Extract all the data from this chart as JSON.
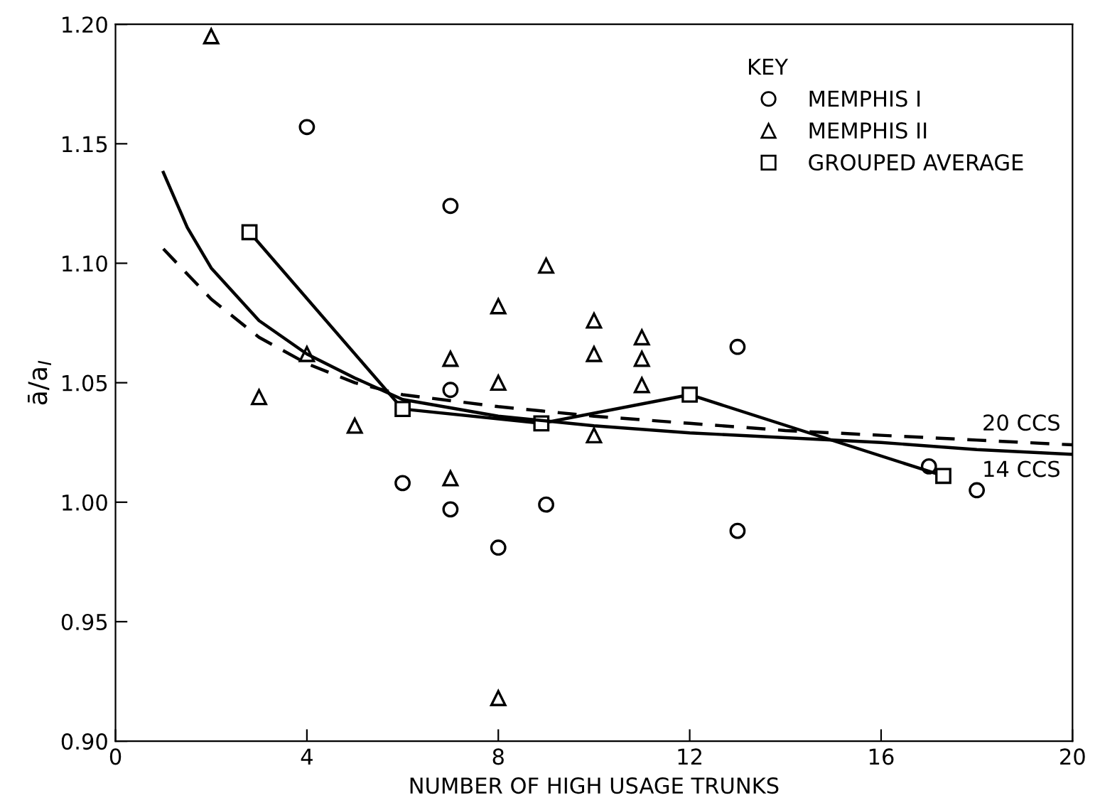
{
  "chart_data": {
    "type": "scatter",
    "xlabel": "NUMBER OF HIGH USAGE TRUNKS",
    "ylabel": "ā/a$_{I}$",
    "xlim": [
      0,
      20
    ],
    "ylim": [
      0.9,
      1.2
    ],
    "xticks": [
      0,
      4,
      8,
      12,
      16,
      20
    ],
    "yticks": [
      {
        "value": 0.9,
        "label": "0.90"
      },
      {
        "value": 0.95,
        "label": "0.95"
      },
      {
        "value": 1.0,
        "label": "1.00"
      },
      {
        "value": 1.05,
        "label": "1.05"
      },
      {
        "value": 1.1,
        "label": "1.10"
      },
      {
        "value": 1.15,
        "label": "1.15"
      },
      {
        "value": 1.2,
        "label": "1.20"
      }
    ],
    "grid": false,
    "legend": "top right",
    "legend_title": "KEY",
    "series": [
      {
        "name": "MEMPHIS I",
        "marker": "circle",
        "color": "#000000",
        "x": [
          4,
          7,
          7,
          6,
          7,
          8,
          9,
          13,
          13,
          17,
          18
        ],
        "values": [
          1.157,
          1.124,
          1.047,
          1.008,
          0.997,
          0.981,
          0.999,
          1.065,
          0.988,
          1.015,
          1.005
        ]
      },
      {
        "name": "MEMPHIS II",
        "marker": "triangle",
        "color": "#000000",
        "x": [
          2,
          3,
          4,
          5,
          7,
          7,
          8,
          8,
          8,
          9,
          10,
          10,
          10,
          11,
          11,
          11
        ],
        "values": [
          1.195,
          1.044,
          1.062,
          1.032,
          1.06,
          1.01,
          1.082,
          1.05,
          0.918,
          1.099,
          1.076,
          1.062,
          1.028,
          1.069,
          1.06,
          1.049
        ]
      },
      {
        "name": "GROUPED AVERAGE",
        "type": "line",
        "marker": "square",
        "line_style": "solid",
        "color": "#000000",
        "x": [
          2.8,
          6,
          8.9,
          12,
          17.3
        ],
        "values": [
          1.113,
          1.039,
          1.033,
          1.045,
          1.011
        ]
      },
      {
        "name": "14 CCS",
        "type": "line",
        "marker": "none",
        "line_style": "solid",
        "color": "#000000",
        "x": [
          1,
          1.5,
          2,
          3,
          4,
          5,
          6,
          8,
          10,
          12,
          14,
          16,
          18,
          20
        ],
        "values": [
          1.138,
          1.115,
          1.098,
          1.076,
          1.062,
          1.052,
          1.043,
          1.036,
          1.032,
          1.029,
          1.027,
          1.025,
          1.022,
          1.02
        ]
      },
      {
        "name": "20 CCS",
        "type": "line",
        "marker": "none",
        "line_style": "dashed",
        "color": "#000000",
        "x": [
          1,
          2,
          3,
          4,
          5,
          6,
          8,
          10,
          12,
          14,
          16,
          18,
          20
        ],
        "values": [
          1.106,
          1.085,
          1.069,
          1.058,
          1.05,
          1.045,
          1.04,
          1.036,
          1.033,
          1.03,
          1.028,
          1.026,
          1.024
        ]
      }
    ]
  }
}
